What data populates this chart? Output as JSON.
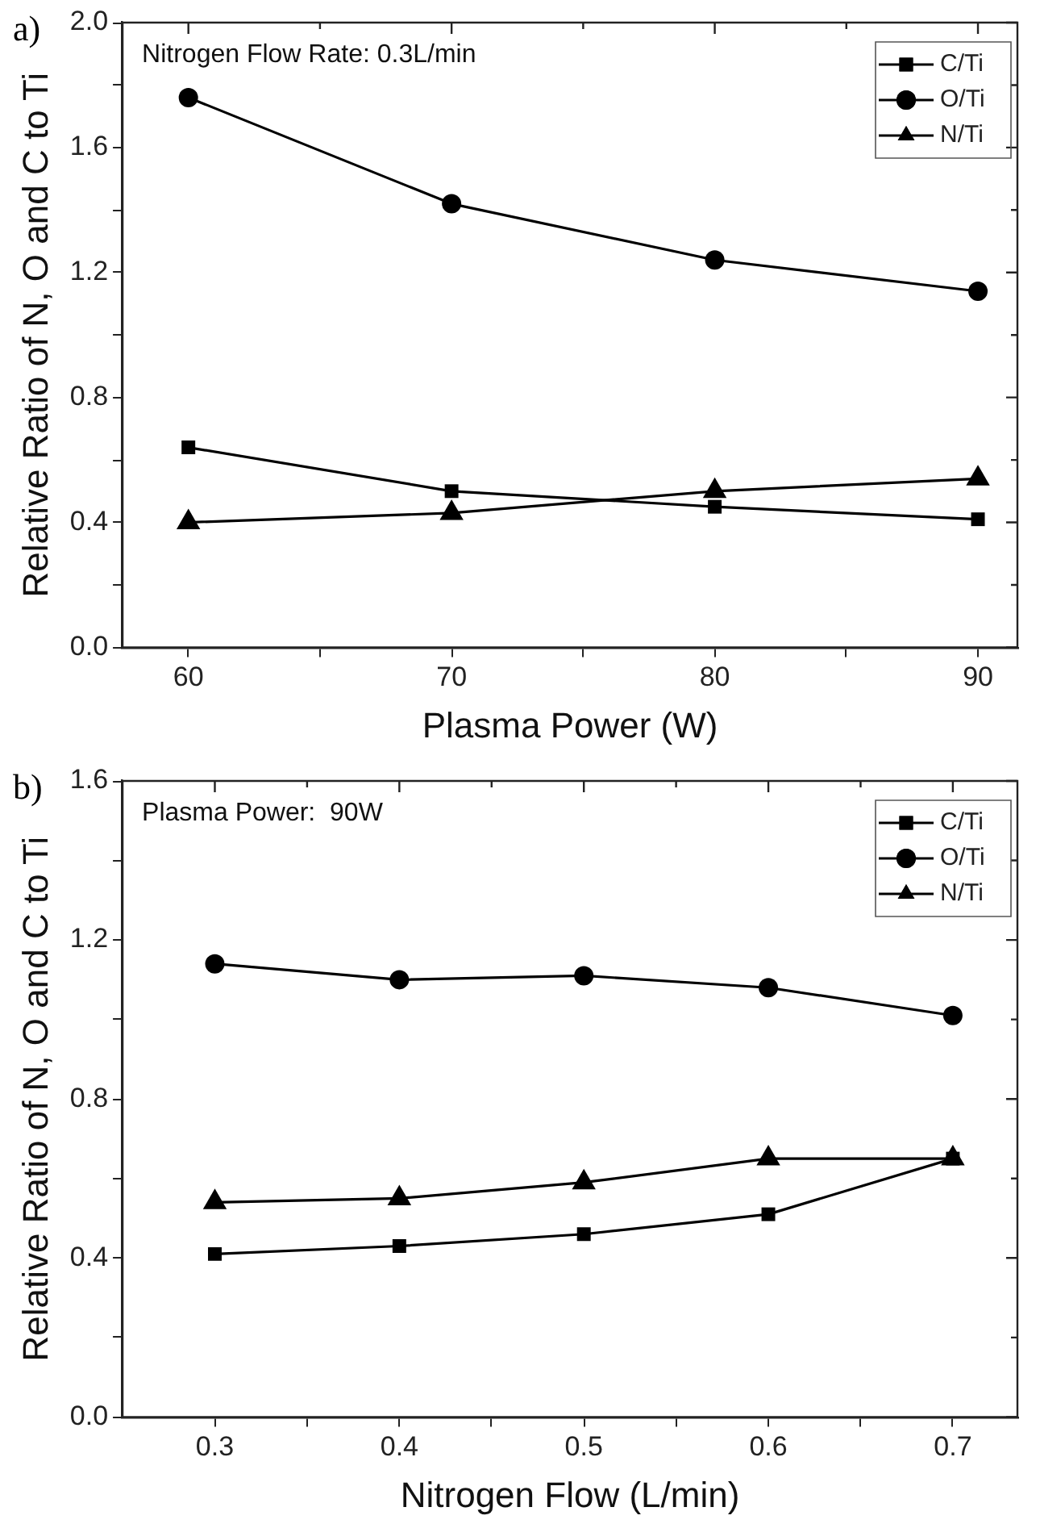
{
  "chart_data": [
    {
      "type": "line",
      "title": "a)",
      "xlabel": "Plasma Power (W)",
      "ylabel": "Relative Ratio of N, O and C to Ti",
      "annotations": [
        "Nitrogen Flow Rate: 0.3L/min"
      ],
      "x": [
        60,
        70,
        80,
        90
      ],
      "xlim": [
        57.5,
        91.5
      ],
      "xticks": [
        60,
        {
          "value": 65,
          "label": null
        },
        70,
        {
          "value": 75,
          "label": null
        },
        80,
        {
          "value": 85,
          "label": null
        },
        90
      ],
      "ylim": [
        0,
        2.0
      ],
      "yticks": [
        {
          "value": 0,
          "label": "0.0"
        },
        {
          "value": 0.2,
          "label": null
        },
        0.4,
        {
          "value": 0.6,
          "label": null
        },
        0.8,
        {
          "value": 1.0,
          "label": null
        },
        1.2,
        {
          "value": 1.4,
          "label": null
        },
        1.6,
        {
          "value": 1.8,
          "label": null
        },
        {
          "value": 2.0,
          "label": "2.0"
        }
      ],
      "grid": false,
      "legend": "top right",
      "line_style": "solid",
      "series": [
        {
          "name": "C/Ti",
          "color": "#000000",
          "marker": "square",
          "values": [
            0.64,
            0.5,
            0.45,
            0.41
          ]
        },
        {
          "name": "O/Ti",
          "color": "#000000",
          "marker": "circle",
          "values": [
            1.76,
            1.42,
            1.24,
            1.14
          ]
        },
        {
          "name": "N/Ti",
          "color": "#000000",
          "marker": "triangle",
          "values": [
            0.4,
            0.43,
            0.5,
            0.54
          ]
        }
      ]
    },
    {
      "type": "line",
      "title": "b)",
      "xlabel": "Nitrogen Flow (L/min)",
      "ylabel": "Relative Ratio of N, O and C to Ti",
      "annotations": [
        "Plasma Power:  90W"
      ],
      "x": [
        0.3,
        0.4,
        0.5,
        0.6,
        0.7
      ],
      "xlim": [
        0.25,
        0.735
      ],
      "xticks": [
        0.3,
        {
          "value": 0.35,
          "label": null
        },
        0.4,
        {
          "value": 0.45,
          "label": null
        },
        0.5,
        {
          "value": 0.55,
          "label": null
        },
        0.6,
        {
          "value": 0.65,
          "label": null
        },
        0.7
      ],
      "ylim": [
        0,
        1.6
      ],
      "yticks": [
        {
          "value": 0,
          "label": "0.0"
        },
        {
          "value": 0.2,
          "label": null
        },
        0.4,
        {
          "value": 0.6,
          "label": null
        },
        0.8,
        {
          "value": 1.0,
          "label": null
        },
        1.2,
        {
          "value": 1.4,
          "label": null
        },
        1.6
      ],
      "grid": false,
      "legend": "top right",
      "line_style": "solid",
      "series": [
        {
          "name": "C/Ti",
          "color": "#000000",
          "marker": "square",
          "values": [
            0.41,
            0.43,
            0.46,
            0.51,
            0.65
          ]
        },
        {
          "name": "O/Ti",
          "color": "#000000",
          "marker": "circle",
          "values": [
            1.14,
            1.1,
            1.11,
            1.08,
            1.01
          ]
        },
        {
          "name": "N/Ti",
          "color": "#000000",
          "marker": "triangle",
          "values": [
            0.54,
            0.55,
            0.59,
            0.65,
            0.65
          ]
        }
      ]
    }
  ]
}
